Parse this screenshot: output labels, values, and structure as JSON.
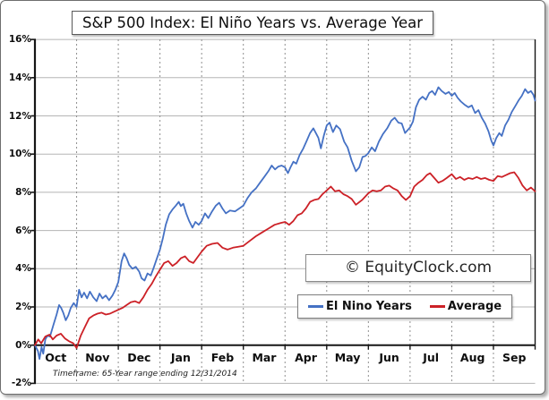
{
  "title": "S&P 500 Index: El Niño Years vs. Average Year",
  "watermark": "© EquityClock.com",
  "footnote": "Timeframe: 65-Year range ending 12/31/2014",
  "chart_data": {
    "type": "line",
    "title": "S&P 500 Index: El Niño Years vs. Average Year",
    "xlabel": "",
    "ylabel": "",
    "x_unit": "months from Oct 1 (0 = Oct 1, 12 = Sep 30)",
    "y_unit": "percent cumulative change",
    "ylim": [
      -2,
      16
    ],
    "grid": true,
    "legend_position": "inside-lower-right",
    "x_categories": [
      "Oct",
      "Nov",
      "Dec",
      "Jan",
      "Feb",
      "Mar",
      "Apr",
      "May",
      "Jun",
      "Jul",
      "Aug",
      "Sep"
    ],
    "y_ticks": [
      {
        "label": "16%",
        "value": 16
      },
      {
        "label": "14%",
        "value": 14
      },
      {
        "label": "12%",
        "value": 12
      },
      {
        "label": "10%",
        "value": 10
      },
      {
        "label": "8%",
        "value": 8
      },
      {
        "label": "6%",
        "value": 6
      },
      {
        "label": "4%",
        "value": 4
      },
      {
        "label": "2%",
        "value": 2
      },
      {
        "label": "0%",
        "value": 0
      },
      {
        "label": "-2%",
        "value": -2
      }
    ],
    "series": [
      {
        "name": "El Nino Years",
        "color": "#4571C4",
        "points": [
          [
            0,
            0
          ],
          [
            0.07,
            -0.3
          ],
          [
            0.11,
            -0.72
          ],
          [
            0.16,
            -0.1
          ],
          [
            0.2,
            -0.45
          ],
          [
            0.25,
            0.3
          ],
          [
            0.3,
            0.5
          ],
          [
            0.36,
            0.45
          ],
          [
            0.45,
            1.1
          ],
          [
            0.52,
            1.6
          ],
          [
            0.58,
            2.1
          ],
          [
            0.63,
            1.95
          ],
          [
            0.68,
            1.7
          ],
          [
            0.74,
            1.3
          ],
          [
            0.8,
            1.55
          ],
          [
            0.86,
            1.95
          ],
          [
            0.93,
            2.2
          ],
          [
            1.0,
            2.0
          ],
          [
            1.06,
            2.9
          ],
          [
            1.12,
            2.5
          ],
          [
            1.18,
            2.75
          ],
          [
            1.25,
            2.45
          ],
          [
            1.32,
            2.8
          ],
          [
            1.4,
            2.5
          ],
          [
            1.48,
            2.3
          ],
          [
            1.55,
            2.7
          ],
          [
            1.62,
            2.45
          ],
          [
            1.7,
            2.6
          ],
          [
            1.78,
            2.35
          ],
          [
            1.86,
            2.6
          ],
          [
            1.93,
            2.9
          ],
          [
            2.0,
            3.3
          ],
          [
            2.08,
            4.4
          ],
          [
            2.14,
            4.8
          ],
          [
            2.2,
            4.55
          ],
          [
            2.26,
            4.2
          ],
          [
            2.34,
            4.0
          ],
          [
            2.42,
            4.1
          ],
          [
            2.5,
            3.85
          ],
          [
            2.56,
            3.5
          ],
          [
            2.63,
            3.38
          ],
          [
            2.7,
            3.75
          ],
          [
            2.78,
            3.65
          ],
          [
            2.85,
            4.05
          ],
          [
            2.92,
            4.5
          ],
          [
            3.0,
            5.0
          ],
          [
            3.07,
            5.6
          ],
          [
            3.14,
            6.3
          ],
          [
            3.22,
            6.85
          ],
          [
            3.3,
            7.1
          ],
          [
            3.38,
            7.3
          ],
          [
            3.45,
            7.5
          ],
          [
            3.5,
            7.28
          ],
          [
            3.56,
            7.4
          ],
          [
            3.63,
            6.9
          ],
          [
            3.7,
            6.5
          ],
          [
            3.78,
            6.15
          ],
          [
            3.85,
            6.45
          ],
          [
            3.93,
            6.3
          ],
          [
            4.0,
            6.5
          ],
          [
            4.08,
            6.9
          ],
          [
            4.16,
            6.65
          ],
          [
            4.25,
            7.0
          ],
          [
            4.34,
            7.3
          ],
          [
            4.42,
            7.45
          ],
          [
            4.5,
            7.15
          ],
          [
            4.58,
            6.9
          ],
          [
            4.68,
            7.05
          ],
          [
            4.8,
            7.0
          ],
          [
            4.9,
            7.15
          ],
          [
            5.0,
            7.3
          ],
          [
            5.1,
            7.7
          ],
          [
            5.2,
            8.0
          ],
          [
            5.3,
            8.2
          ],
          [
            5.4,
            8.5
          ],
          [
            5.5,
            8.8
          ],
          [
            5.6,
            9.1
          ],
          [
            5.68,
            9.4
          ],
          [
            5.76,
            9.2
          ],
          [
            5.84,
            9.35
          ],
          [
            5.92,
            9.4
          ],
          [
            6.0,
            9.3
          ],
          [
            6.07,
            9.0
          ],
          [
            6.13,
            9.3
          ],
          [
            6.2,
            9.6
          ],
          [
            6.27,
            9.5
          ],
          [
            6.35,
            9.95
          ],
          [
            6.44,
            10.3
          ],
          [
            6.52,
            10.7
          ],
          [
            6.6,
            11.1
          ],
          [
            6.68,
            11.35
          ],
          [
            6.74,
            11.1
          ],
          [
            6.8,
            10.85
          ],
          [
            6.86,
            10.3
          ],
          [
            6.93,
            10.95
          ],
          [
            7.0,
            11.5
          ],
          [
            7.07,
            11.65
          ],
          [
            7.15,
            11.15
          ],
          [
            7.23,
            11.5
          ],
          [
            7.32,
            11.3
          ],
          [
            7.42,
            10.65
          ],
          [
            7.5,
            10.35
          ],
          [
            7.6,
            9.65
          ],
          [
            7.7,
            9.1
          ],
          [
            7.78,
            9.3
          ],
          [
            7.86,
            9.85
          ],
          [
            7.93,
            9.9
          ],
          [
            8.0,
            10.05
          ],
          [
            8.08,
            10.35
          ],
          [
            8.16,
            10.15
          ],
          [
            8.25,
            10.65
          ],
          [
            8.35,
            11.05
          ],
          [
            8.45,
            11.35
          ],
          [
            8.55,
            11.75
          ],
          [
            8.63,
            11.9
          ],
          [
            8.72,
            11.65
          ],
          [
            8.8,
            11.6
          ],
          [
            8.88,
            11.1
          ],
          [
            9.0,
            11.4
          ],
          [
            9.07,
            11.7
          ],
          [
            9.14,
            12.45
          ],
          [
            9.22,
            12.85
          ],
          [
            9.3,
            13.0
          ],
          [
            9.38,
            12.85
          ],
          [
            9.46,
            13.2
          ],
          [
            9.53,
            13.3
          ],
          [
            9.6,
            13.1
          ],
          [
            9.68,
            13.5
          ],
          [
            9.76,
            13.3
          ],
          [
            9.85,
            13.15
          ],
          [
            9.93,
            13.25
          ],
          [
            10.0,
            13.05
          ],
          [
            10.07,
            13.2
          ],
          [
            10.14,
            12.95
          ],
          [
            10.22,
            12.75
          ],
          [
            10.3,
            12.6
          ],
          [
            10.4,
            12.45
          ],
          [
            10.48,
            12.55
          ],
          [
            10.56,
            12.15
          ],
          [
            10.64,
            12.3
          ],
          [
            10.72,
            11.9
          ],
          [
            10.8,
            11.6
          ],
          [
            10.88,
            11.2
          ],
          [
            10.95,
            10.7
          ],
          [
            11.0,
            10.45
          ],
          [
            11.07,
            10.85
          ],
          [
            11.14,
            11.1
          ],
          [
            11.2,
            10.95
          ],
          [
            11.28,
            11.5
          ],
          [
            11.36,
            11.8
          ],
          [
            11.44,
            12.2
          ],
          [
            11.52,
            12.5
          ],
          [
            11.6,
            12.8
          ],
          [
            11.68,
            13.05
          ],
          [
            11.76,
            13.4
          ],
          [
            11.83,
            13.2
          ],
          [
            11.9,
            13.3
          ],
          [
            11.96,
            13.1
          ],
          [
            12.0,
            12.8
          ]
        ]
      },
      {
        "name": "Average",
        "color": "#CC2127",
        "points": [
          [
            0,
            0
          ],
          [
            0.08,
            0.3
          ],
          [
            0.15,
            0.1
          ],
          [
            0.25,
            0.45
          ],
          [
            0.35,
            0.55
          ],
          [
            0.43,
            0.3
          ],
          [
            0.52,
            0.5
          ],
          [
            0.62,
            0.6
          ],
          [
            0.72,
            0.35
          ],
          [
            0.82,
            0.2
          ],
          [
            0.92,
            0.1
          ],
          [
            1.0,
            -0.15
          ],
          [
            1.1,
            0.5
          ],
          [
            1.2,
            0.95
          ],
          [
            1.3,
            1.4
          ],
          [
            1.4,
            1.55
          ],
          [
            1.5,
            1.65
          ],
          [
            1.6,
            1.7
          ],
          [
            1.7,
            1.6
          ],
          [
            1.8,
            1.65
          ],
          [
            1.9,
            1.75
          ],
          [
            2.0,
            1.85
          ],
          [
            2.1,
            1.95
          ],
          [
            2.2,
            2.1
          ],
          [
            2.3,
            2.25
          ],
          [
            2.4,
            2.3
          ],
          [
            2.5,
            2.2
          ],
          [
            2.6,
            2.5
          ],
          [
            2.7,
            2.9
          ],
          [
            2.8,
            3.2
          ],
          [
            2.9,
            3.6
          ],
          [
            3.0,
            3.95
          ],
          [
            3.1,
            4.3
          ],
          [
            3.2,
            4.4
          ],
          [
            3.3,
            4.15
          ],
          [
            3.4,
            4.3
          ],
          [
            3.5,
            4.55
          ],
          [
            3.6,
            4.65
          ],
          [
            3.7,
            4.4
          ],
          [
            3.8,
            4.3
          ],
          [
            3.9,
            4.6
          ],
          [
            4.0,
            4.9
          ],
          [
            4.12,
            5.2
          ],
          [
            4.25,
            5.3
          ],
          [
            4.38,
            5.35
          ],
          [
            4.5,
            5.1
          ],
          [
            4.62,
            5.0
          ],
          [
            4.75,
            5.1
          ],
          [
            4.88,
            5.15
          ],
          [
            5.0,
            5.2
          ],
          [
            5.15,
            5.45
          ],
          [
            5.3,
            5.7
          ],
          [
            5.45,
            5.9
          ],
          [
            5.6,
            6.1
          ],
          [
            5.75,
            6.3
          ],
          [
            5.9,
            6.4
          ],
          [
            6.0,
            6.45
          ],
          [
            6.1,
            6.3
          ],
          [
            6.2,
            6.5
          ],
          [
            6.3,
            6.8
          ],
          [
            6.4,
            6.9
          ],
          [
            6.5,
            7.15
          ],
          [
            6.6,
            7.5
          ],
          [
            6.7,
            7.6
          ],
          [
            6.8,
            7.65
          ],
          [
            6.9,
            7.9
          ],
          [
            7.0,
            8.1
          ],
          [
            7.1,
            8.3
          ],
          [
            7.2,
            8.05
          ],
          [
            7.3,
            8.1
          ],
          [
            7.4,
            7.9
          ],
          [
            7.5,
            7.8
          ],
          [
            7.6,
            7.65
          ],
          [
            7.7,
            7.35
          ],
          [
            7.85,
            7.6
          ],
          [
            8.0,
            7.95
          ],
          [
            8.1,
            8.1
          ],
          [
            8.2,
            8.05
          ],
          [
            8.3,
            8.1
          ],
          [
            8.4,
            8.3
          ],
          [
            8.5,
            8.35
          ],
          [
            8.6,
            8.2
          ],
          [
            8.7,
            8.1
          ],
          [
            8.8,
            7.8
          ],
          [
            8.9,
            7.6
          ],
          [
            9.0,
            7.8
          ],
          [
            9.1,
            8.3
          ],
          [
            9.2,
            8.5
          ],
          [
            9.3,
            8.65
          ],
          [
            9.4,
            8.9
          ],
          [
            9.48,
            9.0
          ],
          [
            9.58,
            8.75
          ],
          [
            9.68,
            8.5
          ],
          [
            9.78,
            8.6
          ],
          [
            9.88,
            8.75
          ],
          [
            10.0,
            8.95
          ],
          [
            10.1,
            8.7
          ],
          [
            10.2,
            8.8
          ],
          [
            10.3,
            8.65
          ],
          [
            10.4,
            8.75
          ],
          [
            10.5,
            8.7
          ],
          [
            10.6,
            8.8
          ],
          [
            10.7,
            8.7
          ],
          [
            10.8,
            8.75
          ],
          [
            10.9,
            8.65
          ],
          [
            11.0,
            8.6
          ],
          [
            11.1,
            8.85
          ],
          [
            11.2,
            8.8
          ],
          [
            11.3,
            8.9
          ],
          [
            11.4,
            9.0
          ],
          [
            11.5,
            9.05
          ],
          [
            11.6,
            8.75
          ],
          [
            11.7,
            8.35
          ],
          [
            11.8,
            8.1
          ],
          [
            11.9,
            8.25
          ],
          [
            12.0,
            8.05
          ]
        ]
      }
    ]
  }
}
